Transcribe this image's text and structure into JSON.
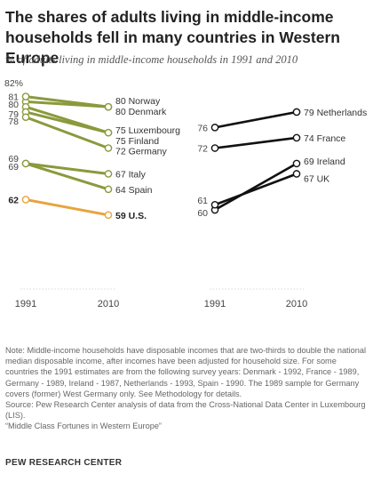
{
  "header": {
    "title": "The shares of adults living in middle-income households fell in many countries in Western Europe",
    "subtitle": "% of adults living in middle-income households in 1991 and 2010"
  },
  "chart_data": [
    {
      "type": "line",
      "panel": "left",
      "x": [
        "1991",
        "2010"
      ],
      "ylim": [
        55,
        84
      ],
      "start_top_label": "82%",
      "series": [
        {
          "name": "Norway",
          "values": [
            81,
            80
          ],
          "color": "#8a9a3c",
          "start_label": "81",
          "end_label": "80 Norway",
          "bold": false
        },
        {
          "name": "Denmark",
          "values": [
            82,
            80
          ],
          "color": "#8a9a3c",
          "start_label": "",
          "end_label": "80 Denmark",
          "bold": false
        },
        {
          "name": "Luxembourg",
          "values": [
            80,
            75
          ],
          "color": "#8a9a3c",
          "start_label": "80",
          "end_label": "75 Luxembourg",
          "bold": false
        },
        {
          "name": "Finland",
          "values": [
            79,
            75
          ],
          "color": "#8a9a3c",
          "start_label": "79",
          "end_label": "75 Finland",
          "bold": false
        },
        {
          "name": "Germany",
          "values": [
            78,
            72
          ],
          "color": "#8a9a3c",
          "start_label": "78",
          "end_label": "72 Germany",
          "bold": false
        },
        {
          "name": "Italy",
          "values": [
            69,
            67
          ],
          "color": "#8a9a3c",
          "start_label": "69",
          "end_label": "67 Italy",
          "bold": false
        },
        {
          "name": "Spain",
          "values": [
            69,
            64
          ],
          "color": "#8a9a3c",
          "start_label": "69",
          "end_label": "64 Spain",
          "bold": false
        },
        {
          "name": "U.S.",
          "values": [
            62,
            59
          ],
          "color": "#e8a33d",
          "start_label": "62",
          "end_label": "59 U.S.",
          "bold": true
        }
      ]
    },
    {
      "type": "line",
      "panel": "right",
      "x": [
        "1991",
        "2010"
      ],
      "ylim": [
        55,
        84
      ],
      "series": [
        {
          "name": "Netherlands",
          "values": [
            76,
            79
          ],
          "color": "#111111",
          "start_label": "76",
          "end_label": "79 Netherlands",
          "bold": false
        },
        {
          "name": "France",
          "values": [
            72,
            74
          ],
          "color": "#111111",
          "start_label": "72",
          "end_label": "74 France",
          "bold": false
        },
        {
          "name": "Ireland",
          "values": [
            60,
            69
          ],
          "color": "#111111",
          "start_label": "60",
          "end_label": "69 Ireland",
          "bold": false
        },
        {
          "name": "UK",
          "values": [
            61,
            67
          ],
          "color": "#111111",
          "start_label": "61",
          "end_label": "67 UK",
          "bold": false
        }
      ]
    }
  ],
  "notes": {
    "note": "Note: Middle-income households have disposable incomes that are two-thirds to double the national median disposable income, after incomes have been adjusted for household size. For some countries the 1991 estimates are from the following survey years: Denmark - 1992, France - 1989, Germany - 1989, Ireland - 1987, Netherlands - 1993, Spain - 1990. The 1989 sample for Germany covers (former) West Germany only. See Methodology for details.",
    "source": "Source: Pew Research Center analysis of data from the Cross-National Data Center in Luxembourg (LIS).",
    "report": "“Middle Class Fortunes in Western Europe”"
  },
  "credit": "PEW RESEARCH CENTER"
}
